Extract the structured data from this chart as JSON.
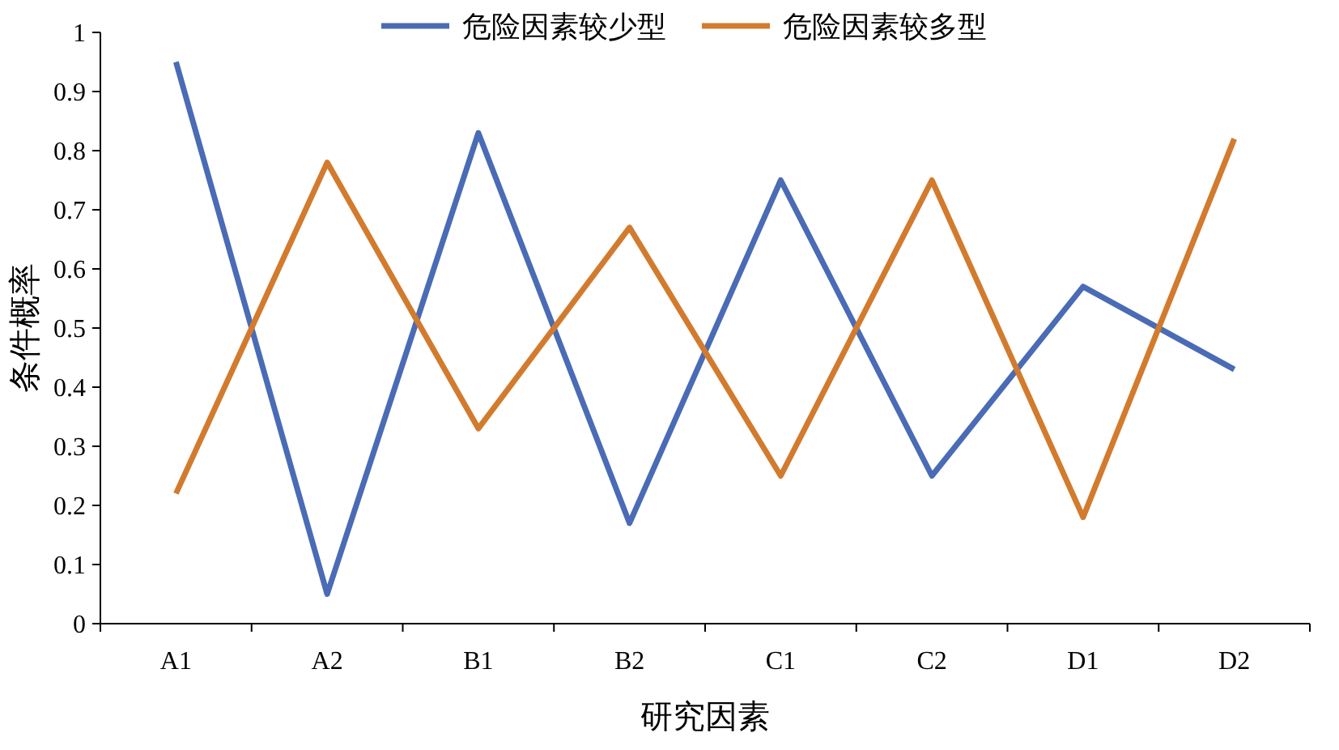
{
  "chart_data": {
    "type": "line",
    "xlabel": "研究因素",
    "ylabel": "条件概率",
    "categories": [
      "A1",
      "A2",
      "B1",
      "B2",
      "C1",
      "C2",
      "D1",
      "D2"
    ],
    "series": [
      {
        "name": "危险因素较少型",
        "color": "#4a6bb5",
        "values": [
          0.95,
          0.05,
          0.83,
          0.17,
          0.75,
          0.25,
          0.57,
          0.43
        ]
      },
      {
        "name": "危险因素较多型",
        "color": "#d27b2e",
        "values": [
          0.22,
          0.78,
          0.33,
          0.67,
          0.25,
          0.75,
          0.18,
          0.82
        ]
      }
    ],
    "ylim": [
      0,
      1
    ],
    "yticks": [
      0,
      0.1,
      0.2,
      0.3,
      0.4,
      0.5,
      0.6,
      0.7,
      0.8,
      0.9,
      1
    ],
    "grid": false,
    "legend": "top",
    "marker": "none",
    "line_style": "solid"
  }
}
